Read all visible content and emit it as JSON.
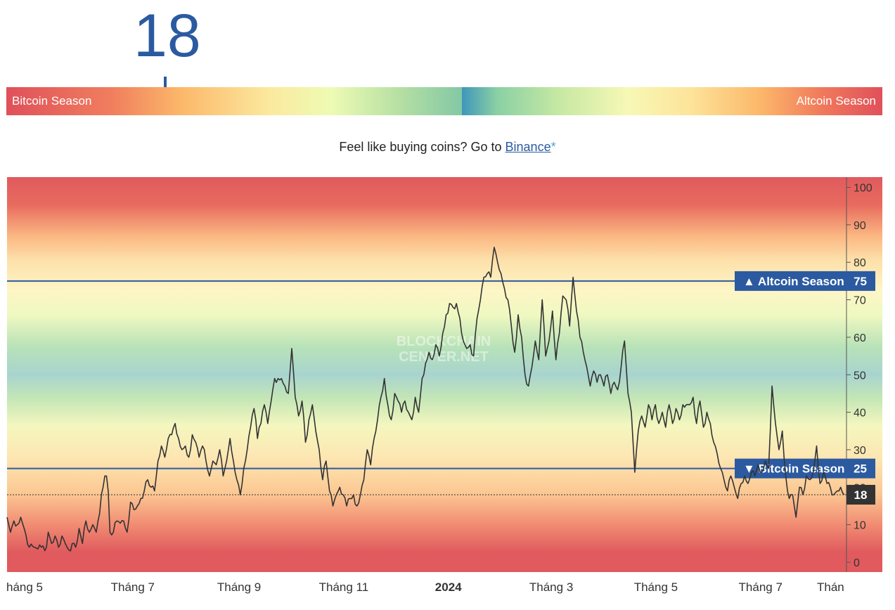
{
  "index": {
    "value": "18",
    "gauge_left_label": "Bitcoin Season",
    "gauge_right_label": "Altcoin Season"
  },
  "promo": {
    "text": "Feel like buying coins? Go to ",
    "link_text": "Binance",
    "asterisk": "*"
  },
  "chart_data": {
    "type": "line",
    "title": "",
    "watermark": [
      "BLOCKCHAIN",
      "CENTER.NET"
    ],
    "xlabel": "",
    "ylabel": "",
    "ylim": [
      -2.5,
      103
    ],
    "y_ticks": [
      0,
      10,
      20,
      30,
      40,
      50,
      60,
      70,
      80,
      90,
      100
    ],
    "x_ticks": [
      {
        "label": "háng 5",
        "index": 0
      },
      {
        "label": "Tháng 7",
        "index": 61
      },
      {
        "label": "Tháng 9",
        "index": 123
      },
      {
        "label": "Tháng 11",
        "index": 184
      },
      {
        "label": "2024",
        "index": 245,
        "bold": true
      },
      {
        "label": "Tháng 3",
        "index": 305
      },
      {
        "label": "Tháng 5",
        "index": 366
      },
      {
        "label": "Tháng 7",
        "index": 427
      },
      {
        "label": "Thán",
        "index": 489
      }
    ],
    "reference_lines": [
      {
        "label": "▲ Altcoin Season",
        "value": 75
      },
      {
        "label": "▼ Bitcoin Season",
        "value": 25
      }
    ],
    "current": {
      "value": 18
    },
    "anchors": [
      [
        0,
        12
      ],
      [
        2,
        8
      ],
      [
        4,
        11
      ],
      [
        6,
        10
      ],
      [
        8,
        12
      ],
      [
        10,
        9
      ],
      [
        13,
        4
      ],
      [
        16,
        4
      ],
      [
        20,
        4
      ],
      [
        23,
        4
      ],
      [
        24,
        8
      ],
      [
        26,
        5
      ],
      [
        28,
        7
      ],
      [
        30,
        4
      ],
      [
        32,
        7
      ],
      [
        35,
        4
      ],
      [
        40,
        4
      ],
      [
        42,
        9
      ],
      [
        44,
        5
      ],
      [
        46,
        11
      ],
      [
        48,
        8
      ],
      [
        50,
        10
      ],
      [
        52,
        8
      ],
      [
        54,
        13
      ],
      [
        55,
        18
      ],
      [
        57,
        23
      ],
      [
        58,
        23
      ],
      [
        59,
        19
      ],
      [
        60,
        8
      ],
      [
        62,
        8
      ],
      [
        64,
        11
      ],
      [
        68,
        11
      ],
      [
        70,
        8
      ],
      [
        72,
        16
      ],
      [
        74,
        14
      ],
      [
        76,
        15
      ],
      [
        78,
        17
      ],
      [
        80,
        19
      ],
      [
        82,
        22
      ],
      [
        84,
        20
      ],
      [
        86,
        19
      ],
      [
        88,
        27
      ],
      [
        90,
        31
      ],
      [
        92,
        28
      ],
      [
        94,
        33
      ],
      [
        96,
        34
      ],
      [
        98,
        37
      ],
      [
        100,
        33
      ],
      [
        102,
        30
      ],
      [
        104,
        31
      ],
      [
        106,
        28
      ],
      [
        108,
        34
      ],
      [
        110,
        32
      ],
      [
        112,
        28
      ],
      [
        114,
        31
      ],
      [
        116,
        27
      ],
      [
        118,
        23
      ],
      [
        120,
        27
      ],
      [
        122,
        26
      ],
      [
        124,
        30
      ],
      [
        126,
        23
      ],
      [
        128,
        27
      ],
      [
        130,
        33
      ],
      [
        132,
        27
      ],
      [
        134,
        22
      ],
      [
        136,
        18
      ],
      [
        138,
        25
      ],
      [
        140,
        30
      ],
      [
        142,
        36
      ],
      [
        144,
        41
      ],
      [
        146,
        33
      ],
      [
        148,
        37
      ],
      [
        150,
        42
      ],
      [
        152,
        37
      ],
      [
        154,
        43
      ],
      [
        156,
        49
      ],
      [
        158,
        49
      ],
      [
        160,
        49
      ],
      [
        162,
        47
      ],
      [
        164,
        45
      ],
      [
        166,
        57
      ],
      [
        168,
        44
      ],
      [
        170,
        39
      ],
      [
        172,
        43
      ],
      [
        174,
        32
      ],
      [
        176,
        38
      ],
      [
        178,
        42
      ],
      [
        180,
        35
      ],
      [
        182,
        30
      ],
      [
        184,
        22
      ],
      [
        186,
        27
      ],
      [
        188,
        19
      ],
      [
        190,
        15
      ],
      [
        192,
        18
      ],
      [
        194,
        20
      ],
      [
        196,
        18
      ],
      [
        198,
        15
      ],
      [
        200,
        17
      ],
      [
        202,
        18
      ],
      [
        204,
        15
      ],
      [
        206,
        18
      ],
      [
        208,
        22
      ],
      [
        210,
        30
      ],
      [
        212,
        26
      ],
      [
        214,
        33
      ],
      [
        216,
        38
      ],
      [
        218,
        44
      ],
      [
        220,
        49
      ],
      [
        222,
        42
      ],
      [
        224,
        38
      ],
      [
        226,
        45
      ],
      [
        228,
        43
      ],
      [
        230,
        40
      ],
      [
        232,
        43
      ],
      [
        234,
        40
      ],
      [
        236,
        38
      ],
      [
        238,
        44
      ],
      [
        240,
        40
      ],
      [
        242,
        49
      ],
      [
        244,
        53
      ],
      [
        246,
        56
      ],
      [
        248,
        54
      ],
      [
        250,
        58
      ],
      [
        252,
        55
      ],
      [
        254,
        61
      ],
      [
        256,
        66
      ],
      [
        258,
        69
      ],
      [
        260,
        68
      ],
      [
        262,
        69
      ],
      [
        264,
        65
      ],
      [
        266,
        59
      ],
      [
        268,
        57
      ],
      [
        270,
        58
      ],
      [
        272,
        55
      ],
      [
        274,
        65
      ],
      [
        276,
        70
      ],
      [
        278,
        76
      ],
      [
        280,
        77
      ],
      [
        282,
        76
      ],
      [
        284,
        84
      ],
      [
        286,
        80
      ],
      [
        288,
        77
      ],
      [
        290,
        73
      ],
      [
        292,
        70
      ],
      [
        294,
        63
      ],
      [
        296,
        56
      ],
      [
        298,
        66
      ],
      [
        300,
        60
      ],
      [
        302,
        50
      ],
      [
        304,
        47
      ],
      [
        306,
        52
      ],
      [
        308,
        59
      ],
      [
        310,
        54
      ],
      [
        312,
        70
      ],
      [
        314,
        55
      ],
      [
        316,
        59
      ],
      [
        318,
        67
      ],
      [
        320,
        54
      ],
      [
        322,
        61
      ],
      [
        324,
        71
      ],
      [
        326,
        70
      ],
      [
        328,
        63
      ],
      [
        330,
        76
      ],
      [
        332,
        67
      ],
      [
        334,
        60
      ],
      [
        336,
        56
      ],
      [
        338,
        52
      ],
      [
        340,
        47
      ],
      [
        342,
        51
      ],
      [
        344,
        48
      ],
      [
        346,
        50
      ],
      [
        348,
        47
      ],
      [
        350,
        50
      ],
      [
        352,
        45
      ],
      [
        354,
        48
      ],
      [
        356,
        46
      ],
      [
        358,
        52
      ],
      [
        360,
        59
      ],
      [
        362,
        45
      ],
      [
        364,
        40
      ],
      [
        366,
        24
      ],
      [
        368,
        35
      ],
      [
        370,
        39
      ],
      [
        372,
        36
      ],
      [
        374,
        42
      ],
      [
        376,
        38
      ],
      [
        378,
        42
      ],
      [
        380,
        37
      ],
      [
        382,
        40
      ],
      [
        384,
        36
      ],
      [
        386,
        42
      ],
      [
        388,
        37
      ],
      [
        390,
        41
      ],
      [
        392,
        38
      ],
      [
        394,
        42
      ],
      [
        396,
        42
      ],
      [
        398,
        42
      ],
      [
        400,
        44
      ],
      [
        402,
        37
      ],
      [
        404,
        43
      ],
      [
        406,
        36
      ],
      [
        408,
        40
      ],
      [
        410,
        37
      ],
      [
        412,
        32
      ],
      [
        414,
        29
      ],
      [
        416,
        25
      ],
      [
        418,
        22
      ],
      [
        420,
        19
      ],
      [
        422,
        23
      ],
      [
        424,
        20
      ],
      [
        426,
        17
      ],
      [
        428,
        21
      ],
      [
        430,
        23
      ],
      [
        432,
        21
      ],
      [
        434,
        24
      ],
      [
        436,
        23
      ],
      [
        438,
        26
      ],
      [
        440,
        24
      ],
      [
        442,
        27
      ],
      [
        444,
        25
      ],
      [
        446,
        47
      ],
      [
        448,
        37
      ],
      [
        450,
        30
      ],
      [
        452,
        35
      ],
      [
        454,
        23
      ],
      [
        456,
        17
      ],
      [
        458,
        18
      ],
      [
        460,
        12
      ],
      [
        462,
        20
      ],
      [
        464,
        18
      ],
      [
        466,
        23
      ],
      [
        468,
        22
      ],
      [
        470,
        24
      ],
      [
        472,
        31
      ],
      [
        474,
        21
      ],
      [
        476,
        24
      ],
      [
        478,
        21
      ],
      [
        480,
        20
      ],
      [
        482,
        18
      ],
      [
        484,
        19
      ],
      [
        486,
        20
      ],
      [
        488,
        18
      ]
    ]
  }
}
